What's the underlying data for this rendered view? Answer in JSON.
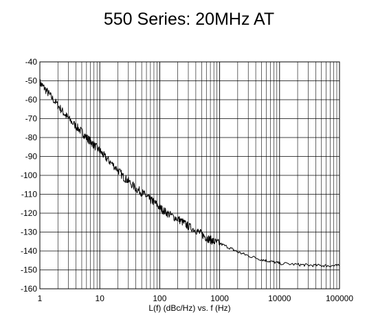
{
  "chart_data": {
    "type": "line",
    "title": "550 Series:  20MHz AT",
    "xlabel": "L(f) (dBc/Hz) vs. f (Hz)",
    "ylabel": "",
    "x_scale": "log",
    "xlim": [
      1,
      100000
    ],
    "ylim": [
      -160,
      -40
    ],
    "x_tick_labels": [
      "1",
      "10",
      "100",
      "1000",
      "10000",
      "100000"
    ],
    "y_tick_labels": [
      "-40",
      "-50",
      "-60",
      "-70",
      "-80",
      "-90",
      "-100",
      "-110",
      "-120",
      "-130",
      "-140",
      "-150",
      "-160"
    ],
    "grid": true,
    "legend": "none",
    "line_color": "#000000",
    "series": [
      {
        "x": [
          1,
          1.2,
          1.5,
          2,
          2.5,
          3,
          4,
          5,
          6,
          7,
          8,
          10,
          12,
          15,
          20,
          25,
          30,
          40,
          50,
          60,
          70,
          80,
          100,
          120,
          150,
          200,
          250,
          300,
          400,
          500,
          600,
          700,
          800,
          1000,
          1500,
          2000,
          3000,
          5000,
          7000,
          10000,
          20000,
          30000,
          50000,
          70000,
          100000
        ],
        "y": [
          -51,
          -54,
          -58,
          -63,
          -67,
          -70,
          -74,
          -77,
          -80,
          -82,
          -84,
          -87,
          -90,
          -93,
          -97,
          -101,
          -103,
          -107,
          -109,
          -111,
          -113,
          -114,
          -117,
          -119,
          -121,
          -123,
          -125,
          -127,
          -129,
          -131,
          -133,
          -134,
          -135,
          -136,
          -138.5,
          -140.5,
          -142.5,
          -144.5,
          -145.5,
          -146.5,
          -147.2,
          -147.5,
          -147.7,
          -147.8,
          -147.8
        ]
      }
    ]
  }
}
